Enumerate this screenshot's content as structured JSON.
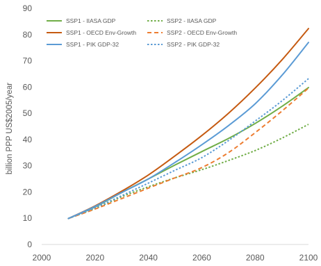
{
  "chart_data": {
    "type": "line",
    "title": "",
    "xlabel": "",
    "ylabel": "billion PPP US$2005/year",
    "xlim": [
      2000,
      2100
    ],
    "ylim": [
      0,
      90
    ],
    "x_ticks": [
      "2000",
      "2020",
      "2040",
      "2060",
      "2080",
      "2100"
    ],
    "y_ticks": [
      "0",
      "10",
      "20",
      "30",
      "40",
      "50",
      "60",
      "70",
      "80",
      "90"
    ],
    "grid": false,
    "legend_placement": "top-left",
    "x": [
      2010,
      2020,
      2030,
      2040,
      2050,
      2060,
      2070,
      2080,
      2090,
      2100
    ],
    "series": [
      {
        "name": "SSP1 - IIASA GDP",
        "color": "#70ad47",
        "dash": "solid",
        "values": [
          9.9,
          14.3,
          19.8,
          25.0,
          30.3,
          35.4,
          40.4,
          46.1,
          52.6,
          59.8
        ]
      },
      {
        "name": "SSP2 - IIASA GDP",
        "color": "#70ad47",
        "dash": "dot",
        "values": [
          9.9,
          13.7,
          18.2,
          22.0,
          25.4,
          28.5,
          32.0,
          35.8,
          40.5,
          45.8
        ]
      },
      {
        "name": "SSP1 - OECD Env-Growth",
        "color": "#c55a11",
        "dash": "solid",
        "values": [
          9.9,
          14.7,
          20.3,
          26.5,
          33.8,
          41.5,
          50.0,
          59.6,
          70.3,
          82.3
        ]
      },
      {
        "name": "SSP2 - OECD Env-Growth",
        "color": "#ed7d31",
        "dash": "dash",
        "values": [
          9.9,
          13.5,
          17.5,
          21.5,
          25.4,
          29.3,
          35.0,
          42.6,
          50.8,
          59.6
        ]
      },
      {
        "name": "SSP1 - PIK GDP-32",
        "color": "#5b9bd5",
        "dash": "solid",
        "values": [
          9.9,
          14.5,
          19.8,
          25.0,
          31.3,
          38.0,
          45.3,
          53.6,
          64.4,
          77.0
        ]
      },
      {
        "name": "SSP2 - PIK GDP-32",
        "color": "#5b9bd5",
        "dash": "dot",
        "values": [
          9.9,
          14.0,
          18.6,
          23.4,
          28.3,
          33.1,
          39.6,
          47.0,
          54.7,
          63.2
        ]
      }
    ]
  }
}
